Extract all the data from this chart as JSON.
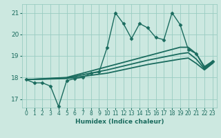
{
  "title": "",
  "xlabel": "Humidex (Indice chaleur)",
  "bg_color": "#cce8e0",
  "grid_color": "#99ccc2",
  "line_color": "#1a6b5e",
  "xlim": [
    -0.5,
    23.5
  ],
  "ylim": [
    16.6,
    21.4
  ],
  "yticks": [
    17,
    18,
    19,
    20,
    21
  ],
  "xticks": [
    0,
    1,
    2,
    3,
    4,
    5,
    6,
    7,
    8,
    9,
    10,
    11,
    12,
    13,
    14,
    15,
    16,
    17,
    18,
    19,
    20,
    21,
    22,
    23
  ],
  "lines": [
    {
      "x": [
        0,
        1,
        2,
        3,
        4,
        5,
        6,
        7,
        8,
        9,
        10,
        11,
        12,
        13,
        14,
        15,
        16,
        17,
        18,
        19,
        20,
        21,
        22,
        23
      ],
      "y": [
        17.9,
        17.75,
        17.75,
        17.6,
        16.65,
        17.85,
        17.95,
        18.0,
        18.2,
        18.25,
        19.4,
        21.0,
        20.5,
        19.8,
        20.5,
        20.3,
        19.85,
        19.75,
        21.0,
        20.45,
        19.3,
        19.1,
        18.45,
        18.75
      ],
      "marker": "D",
      "markersize": 2.5,
      "linewidth": 1.0
    },
    {
      "x": [
        0,
        5,
        10,
        15,
        19,
        20,
        21,
        22,
        23
      ],
      "y": [
        17.9,
        18.0,
        18.5,
        19.0,
        19.4,
        19.4,
        19.1,
        18.5,
        18.75
      ],
      "marker": null,
      "markersize": 0,
      "linewidth": 1.3
    },
    {
      "x": [
        0,
        5,
        10,
        15,
        19,
        20,
        21,
        22,
        23
      ],
      "y": [
        17.9,
        17.95,
        18.2,
        18.6,
        18.85,
        18.9,
        18.65,
        18.35,
        18.65
      ],
      "marker": null,
      "markersize": 0,
      "linewidth": 1.3
    },
    {
      "x": [
        0,
        5,
        10,
        15,
        19,
        20,
        21,
        22,
        23
      ],
      "y": [
        17.9,
        17.98,
        18.35,
        18.8,
        19.1,
        19.15,
        18.85,
        18.4,
        18.7
      ],
      "marker": null,
      "markersize": 0,
      "linewidth": 1.3
    }
  ]
}
